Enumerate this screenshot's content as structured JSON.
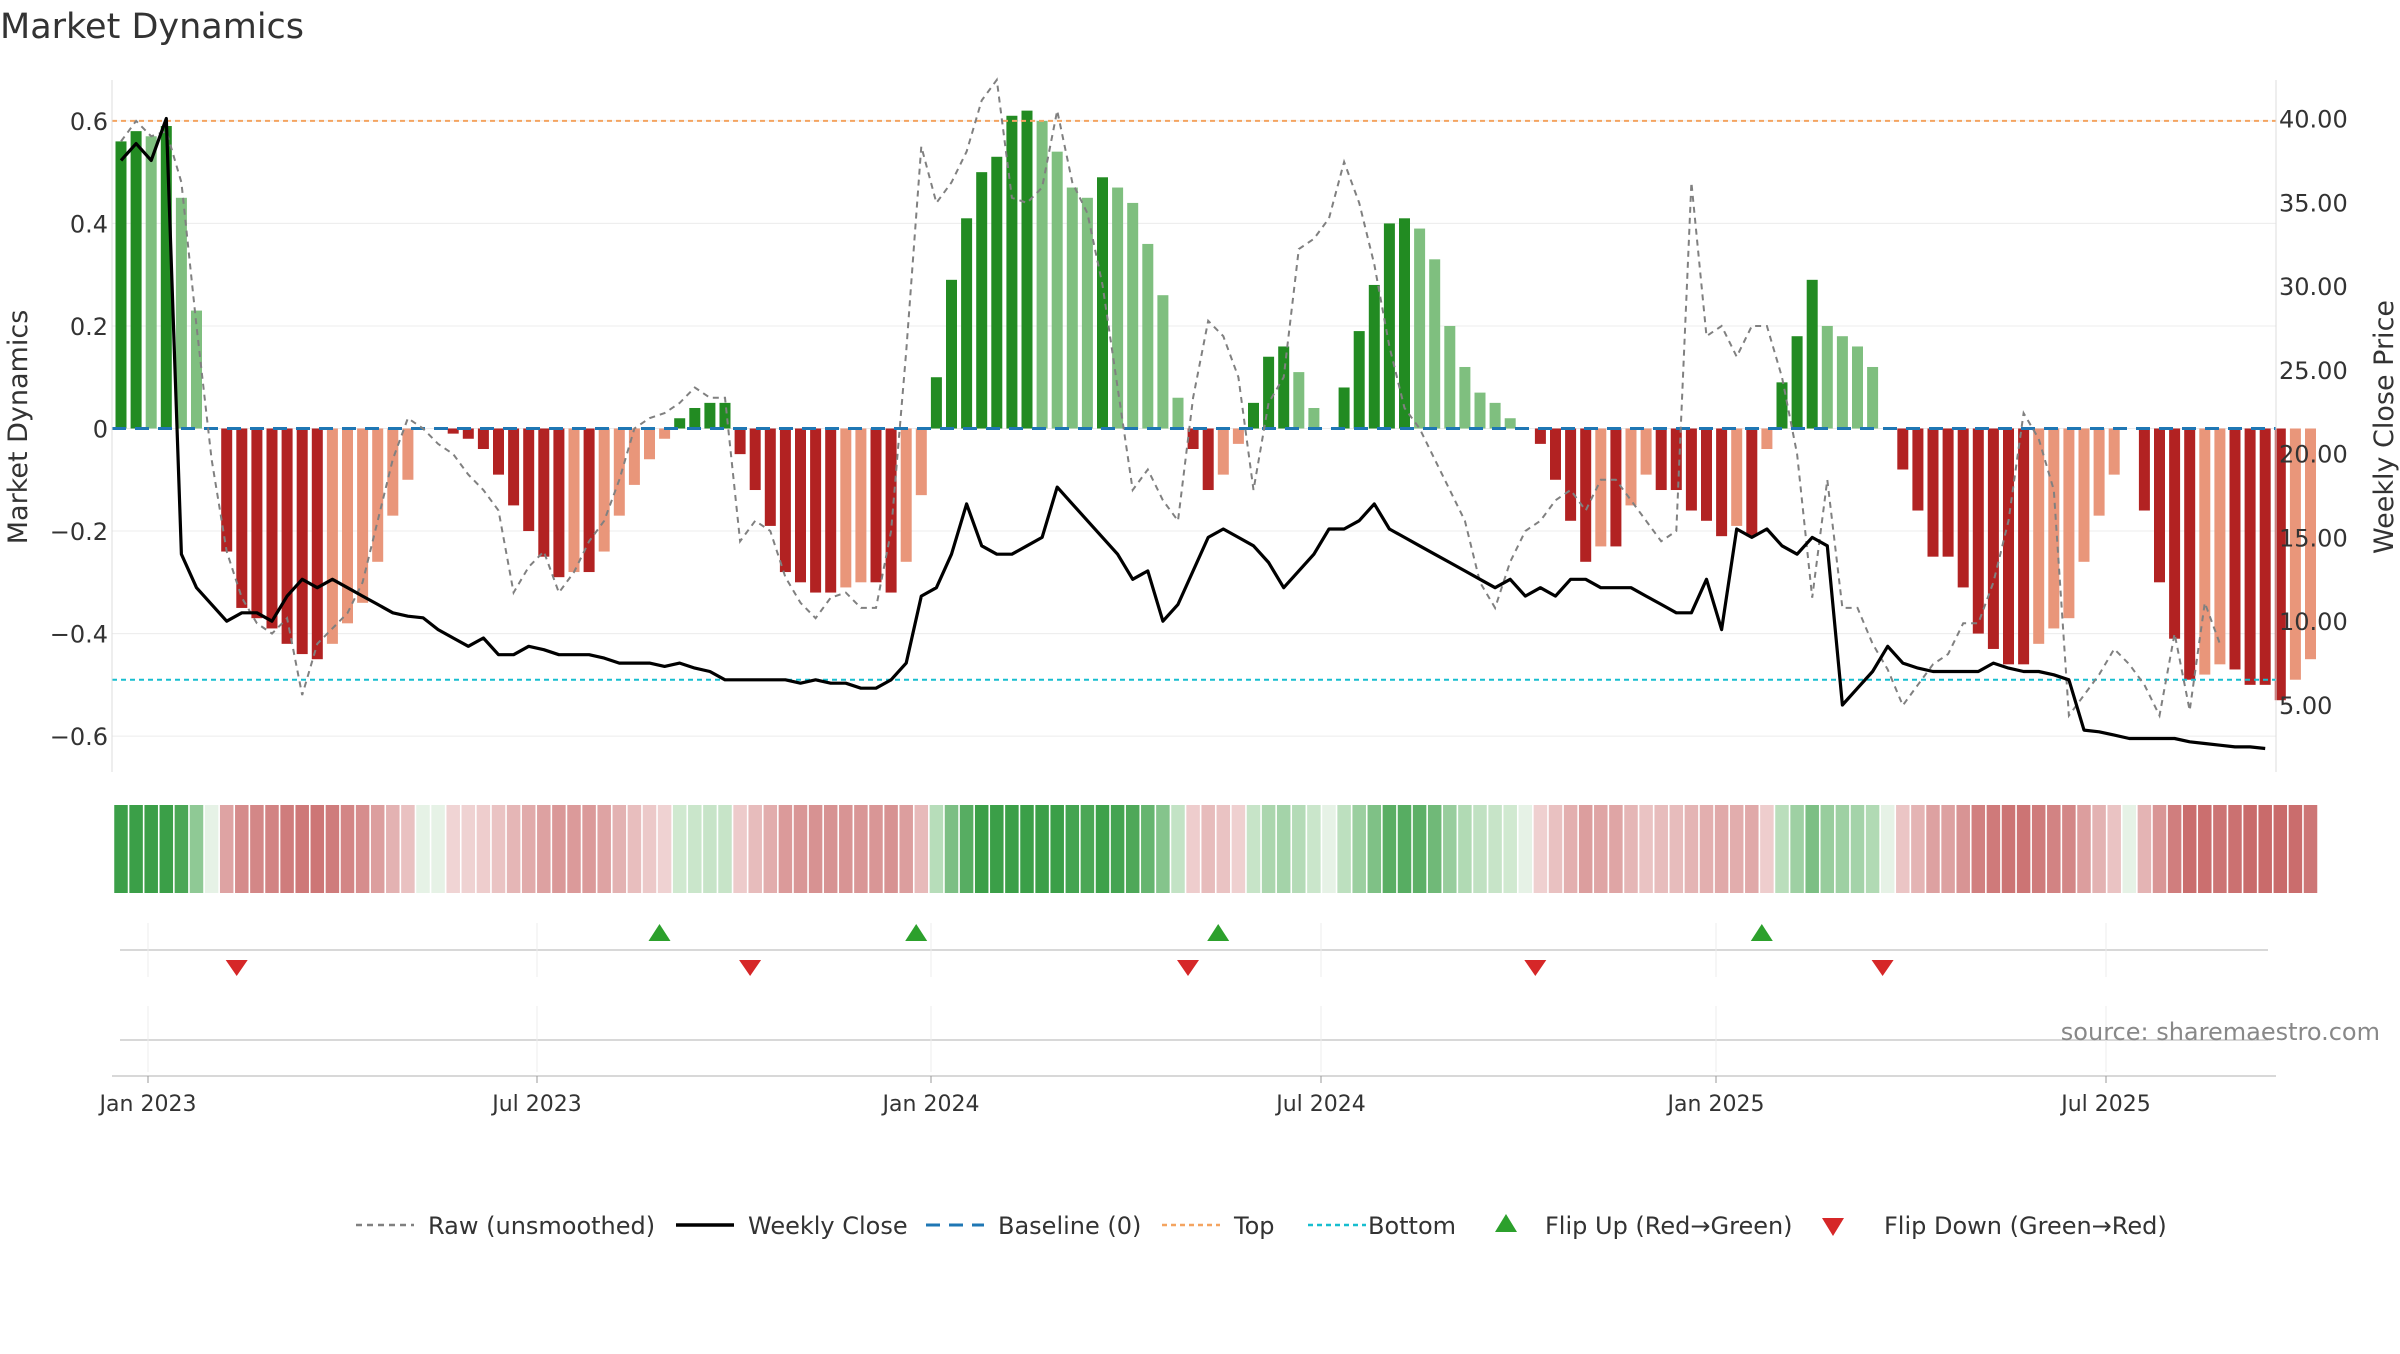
{
  "chart_data": {
    "type": "bar",
    "title": "Market Dynamics",
    "ylabel_left": "Market Dynamics",
    "ylabel_right": "Weekly Close Price",
    "source": "source: sharemaestro.com",
    "ylim_left": [
      -0.67,
      0.67
    ],
    "ylim_right": [
      1.0,
      42.0
    ],
    "yticks_left": [
      "0.6",
      "0.4",
      "0.2",
      "0",
      "−0.2",
      "−0.4",
      "−0.6"
    ],
    "yticks_left_values": [
      0.6,
      0.4,
      0.2,
      0,
      -0.2,
      -0.4,
      -0.6
    ],
    "yticks_right": [
      "40.00",
      "35.00",
      "30.00",
      "25.00",
      "20.00",
      "15.00",
      "10.00",
      "5.00"
    ],
    "yticks_right_values": [
      40,
      35,
      30,
      25,
      20,
      15,
      10,
      5
    ],
    "xticks": [
      "Jan 2023",
      "Jul 2023",
      "Jan 2024",
      "Jul 2024",
      "Jan 2025",
      "Jul 2025"
    ],
    "xticks_week_index": [
      0,
      26,
      52,
      78,
      104,
      130
    ],
    "first_week": "2022-12-26",
    "top_level": 0.6,
    "bottom_level": -0.49,
    "dynamics": [
      0.56,
      0.58,
      0.57,
      0.59,
      0.45,
      0.23,
      0.0,
      -0.24,
      -0.35,
      -0.37,
      -0.39,
      -0.42,
      -0.44,
      -0.45,
      -0.42,
      -0.38,
      -0.34,
      -0.26,
      -0.17,
      -0.1,
      0.0,
      0.0,
      -0.01,
      -0.02,
      -0.04,
      -0.09,
      -0.15,
      -0.2,
      -0.25,
      -0.29,
      -0.28,
      -0.28,
      -0.24,
      -0.17,
      -0.11,
      -0.06,
      -0.02,
      0.02,
      0.04,
      0.05,
      0.05,
      -0.05,
      -0.12,
      -0.19,
      -0.28,
      -0.3,
      -0.32,
      -0.32,
      -0.31,
      -0.3,
      -0.3,
      -0.32,
      -0.26,
      -0.13,
      0.1,
      0.29,
      0.41,
      0.5,
      0.53,
      0.61,
      0.62,
      0.6,
      0.54,
      0.47,
      0.45,
      0.49,
      0.47,
      0.44,
      0.36,
      0.26,
      0.06,
      -0.04,
      -0.12,
      -0.09,
      -0.03,
      0.05,
      0.14,
      0.16,
      0.11,
      0.04,
      0.0,
      0.08,
      0.19,
      0.28,
      0.4,
      0.41,
      0.39,
      0.33,
      0.2,
      0.12,
      0.07,
      0.05,
      0.02,
      0.0,
      -0.03,
      -0.1,
      -0.18,
      -0.26,
      -0.23,
      -0.23,
      -0.15,
      -0.09,
      -0.12,
      -0.12,
      -0.16,
      -0.18,
      -0.21,
      -0.19,
      -0.21,
      -0.04,
      0.09,
      0.18,
      0.29,
      0.2,
      0.18,
      0.16,
      0.12,
      0.0,
      -0.08,
      -0.16,
      -0.25,
      -0.25,
      -0.31,
      -0.4,
      -0.43,
      -0.46,
      -0.46,
      -0.42,
      -0.39,
      -0.37,
      -0.26,
      -0.17,
      -0.09,
      0.0,
      -0.16,
      -0.3,
      -0.41,
      -0.49,
      -0.48,
      -0.46,
      -0.47,
      -0.5,
      -0.5,
      -0.53,
      -0.49,
      -0.45
    ],
    "raw": [
      0.56,
      0.6,
      0.57,
      0.58,
      0.48,
      0.2,
      -0.06,
      -0.24,
      -0.33,
      -0.38,
      -0.4,
      -0.37,
      -0.52,
      -0.42,
      -0.39,
      -0.36,
      -0.3,
      -0.18,
      -0.06,
      0.02,
      0.0,
      -0.03,
      -0.05,
      -0.09,
      -0.12,
      -0.16,
      -0.32,
      -0.27,
      -0.24,
      -0.32,
      -0.28,
      -0.22,
      -0.18,
      -0.1,
      0.0,
      0.02,
      0.03,
      0.05,
      0.08,
      0.06,
      0.06,
      -0.22,
      -0.18,
      -0.2,
      -0.29,
      -0.34,
      -0.37,
      -0.33,
      -0.32,
      -0.35,
      -0.35,
      -0.2,
      0.15,
      0.55,
      0.44,
      0.48,
      0.54,
      0.64,
      0.68,
      0.45,
      0.44,
      0.47,
      0.62,
      0.48,
      0.42,
      0.28,
      0.08,
      -0.12,
      -0.08,
      -0.14,
      -0.18,
      0.06,
      0.21,
      0.18,
      0.1,
      -0.12,
      0.05,
      0.1,
      0.35,
      0.37,
      0.41,
      0.52,
      0.44,
      0.32,
      0.16,
      0.04,
      0.0,
      -0.06,
      -0.12,
      -0.18,
      -0.3,
      -0.35,
      -0.26,
      -0.2,
      -0.18,
      -0.14,
      -0.12,
      -0.16,
      -0.1,
      -0.1,
      -0.14,
      -0.18,
      -0.22,
      -0.2,
      0.48,
      0.18,
      0.2,
      0.14,
      0.2,
      0.2,
      0.1,
      -0.05,
      -0.33,
      -0.1,
      -0.35,
      -0.35,
      -0.42,
      -0.47,
      -0.54,
      -0.5,
      -0.46,
      -0.44,
      -0.38,
      -0.38,
      -0.3,
      -0.18,
      0.03,
      -0.02,
      -0.12,
      -0.56,
      -0.52,
      -0.48,
      -0.43,
      -0.46,
      -0.5,
      -0.56,
      -0.4,
      -0.55,
      -0.34,
      -0.42
    ],
    "weekly_close": [
      37.5,
      38.5,
      37.5,
      40.0,
      14.0,
      12.0,
      11.0,
      10.0,
      10.5,
      10.5,
      10.0,
      11.5,
      12.5,
      12.0,
      12.5,
      12.0,
      11.5,
      11.0,
      10.5,
      10.3,
      10.2,
      9.5,
      9.0,
      8.5,
      9.0,
      8.0,
      8.0,
      8.5,
      8.3,
      8.0,
      8.0,
      8.0,
      7.8,
      7.5,
      7.5,
      7.5,
      7.3,
      7.5,
      7.2,
      7.0,
      6.5,
      6.5,
      6.5,
      6.5,
      6.5,
      6.3,
      6.5,
      6.3,
      6.3,
      6.0,
      6.0,
      6.5,
      7.5,
      11.5,
      12.0,
      14.0,
      17.0,
      14.5,
      14.0,
      14.0,
      14.5,
      15.0,
      18.0,
      17.0,
      16.0,
      15.0,
      14.0,
      12.5,
      13.0,
      10.0,
      11.0,
      13.0,
      15.0,
      15.5,
      15.0,
      14.5,
      13.5,
      12.0,
      13.0,
      14.0,
      15.5,
      15.5,
      16.0,
      17.0,
      15.5,
      15.0,
      14.5,
      14.0,
      13.5,
      13.0,
      12.5,
      12.0,
      12.5,
      11.5,
      12.0,
      11.5,
      12.5,
      12.5,
      12.0,
      12.0,
      12.0,
      11.5,
      11.0,
      10.5,
      10.5,
      12.5,
      9.5,
      15.5,
      15.0,
      15.5,
      14.5,
      14.0,
      15.0,
      14.5,
      5.0,
      6.0,
      7.0,
      8.5,
      7.5,
      7.2,
      7.0,
      7.0,
      7.0,
      7.0,
      7.5,
      7.2,
      7.0,
      7.0,
      6.8,
      6.5,
      3.5,
      3.4,
      3.2,
      3.0,
      3.0,
      3.0,
      3.0,
      2.8,
      2.7,
      2.6,
      2.5,
      2.5,
      2.4
    ],
    "flip_up_weeks": [
      35,
      52,
      72,
      108
    ],
    "flip_down_weeks": [
      7,
      41,
      70,
      93,
      116
    ],
    "series_colors": {
      "bar_green_strong": "#228b22",
      "bar_green_light": "#7fbf7f",
      "bar_red_strong": "#b22222",
      "bar_red_light": "#e9967a",
      "raw": "#808080",
      "weekly_close": "#000000",
      "baseline": "#1f77b4",
      "top": "#f4a460",
      "bottom": "#17becf",
      "flip_up": "#2ca02c",
      "flip_down": "#d62728"
    }
  },
  "legend": {
    "raw": "Raw (unsmoothed)",
    "weekly_close": "Weekly Close",
    "baseline": "Baseline (0)",
    "top": "Top",
    "bottom": "Bottom",
    "flip_up": "Flip Up (Red→Green)",
    "flip_down": "Flip Down (Green→Red)"
  }
}
